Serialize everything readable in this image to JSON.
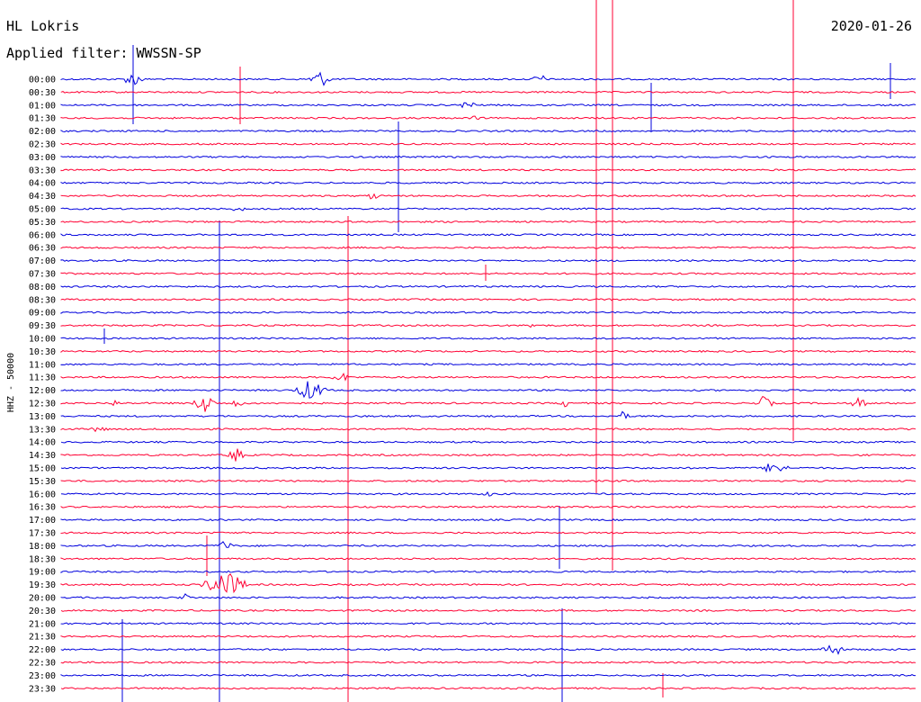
{
  "header": {
    "station": "HL Lokris",
    "date": "2020-01-26",
    "filter": "Applied filter: WWSSN-SP"
  },
  "axis": {
    "ylabel": "HHZ - 50000"
  },
  "colors": {
    "trace_a": "#0000dd",
    "trace_b": "#ff0033"
  },
  "rows": [
    "00:00",
    "00:30",
    "01:00",
    "01:30",
    "02:00",
    "02:30",
    "03:00",
    "03:30",
    "04:00",
    "04:30",
    "05:00",
    "05:30",
    "06:00",
    "06:30",
    "07:00",
    "07:30",
    "08:00",
    "08:30",
    "09:00",
    "09:30",
    "10:00",
    "10:30",
    "11:00",
    "11:30",
    "12:00",
    "12:30",
    "13:00",
    "13:30",
    "14:00",
    "14:30",
    "15:00",
    "15:30",
    "16:00",
    "16:30",
    "17:00",
    "17:30",
    "18:00",
    "18:30",
    "19:00",
    "19:30",
    "20:00",
    "20:30",
    "21:00",
    "21:30",
    "22:00",
    "22:30",
    "23:00",
    "23:30"
  ]
}
